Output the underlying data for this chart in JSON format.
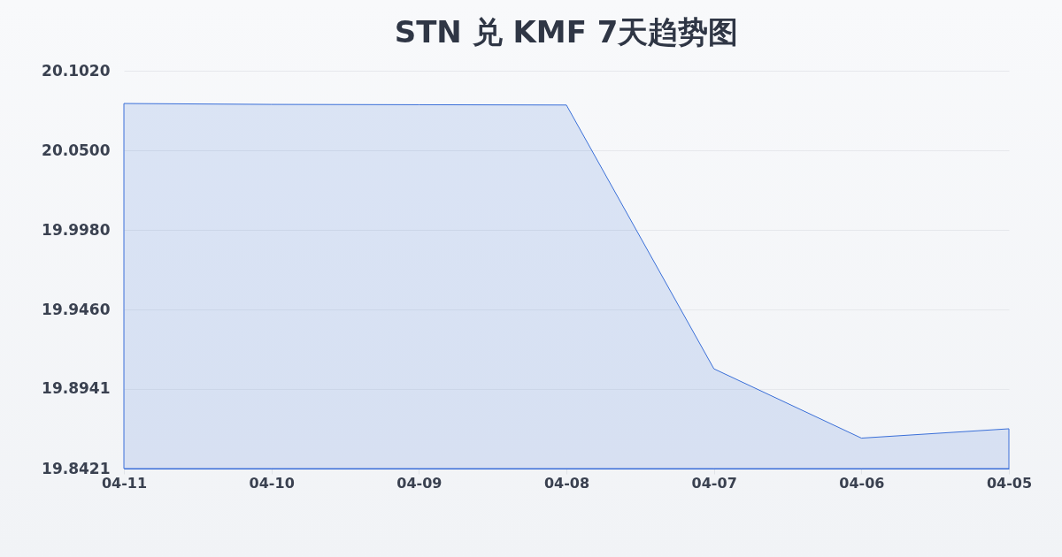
{
  "chart_data": {
    "type": "area",
    "title": "STN 兑 KMF 7天趋势图",
    "categories": [
      "04-11",
      "04-10",
      "04-09",
      "04-08",
      "04-07",
      "04-06",
      "04-05"
    ],
    "series": [
      {
        "color": "#3a6fd8",
        "values": [
          20.0806,
          20.08,
          20.0798,
          20.0796,
          19.9073,
          19.862,
          19.8681
        ]
      }
    ],
    "ylim": [
      19.8421,
      20.102
    ],
    "yticks": [
      {
        "value": 19.8421,
        "label": "19.8421"
      },
      {
        "value": 19.8941,
        "label": "19.8941"
      },
      {
        "value": 19.946,
        "label": "19.9460"
      },
      {
        "value": 19.998,
        "label": "19.9980"
      },
      {
        "value": 20.05,
        "label": "20.0500"
      },
      {
        "value": 20.102,
        "label": "20.1020"
      }
    ],
    "grid": "y"
  }
}
